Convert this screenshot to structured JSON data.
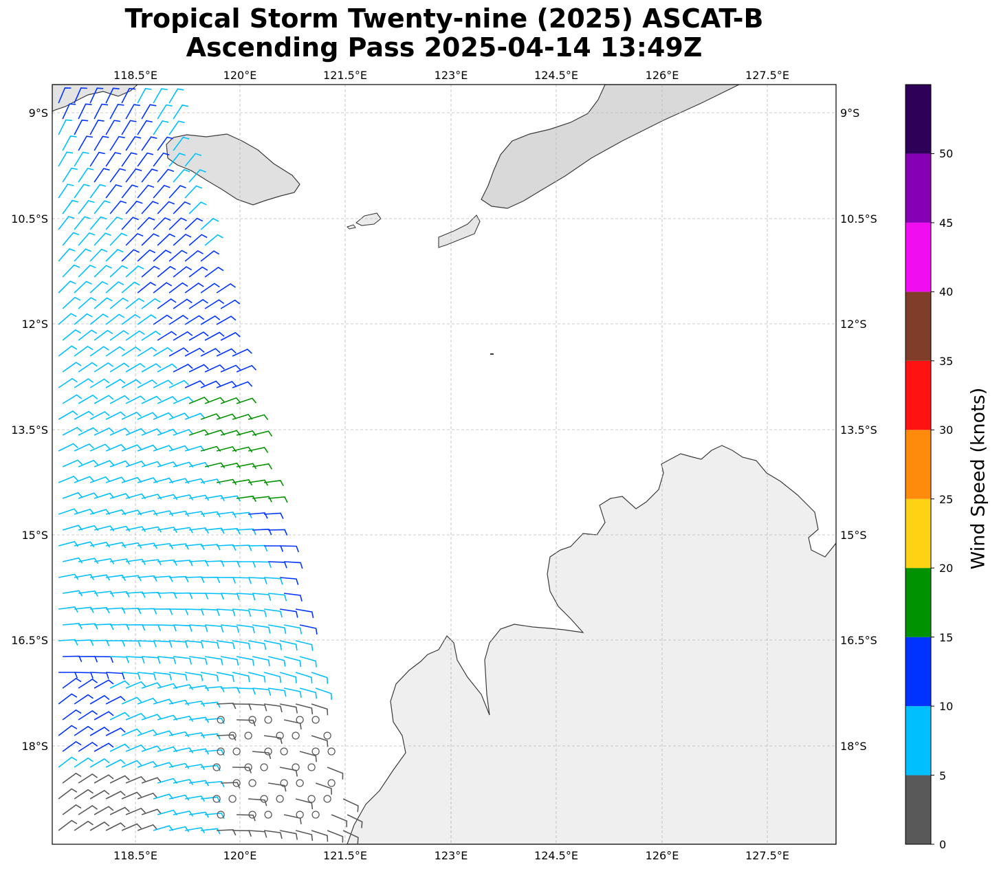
{
  "title": {
    "line1": "Tropical Storm Twenty-nine (2025) ASCAT-B",
    "line2": "Ascending Pass 2025-04-14 13:49Z"
  },
  "map": {
    "lon_ticks": [
      "118.5°E",
      "120°E",
      "121.5°E",
      "123°E",
      "124.5°E",
      "126°E",
      "127.5°E"
    ],
    "lat_ticks": [
      "9°S",
      "10.5°S",
      "12°S",
      "13.5°S",
      "15°S",
      "16.5°S",
      "18°S"
    ],
    "lon_range_deg_E": [
      117.3,
      128.45
    ],
    "lat_range_deg_S": [
      8.6,
      19.4
    ],
    "gridlines": "dashed"
  },
  "colorbar": {
    "label": "Wind Speed (knots)",
    "ticks": [
      "0",
      "5",
      "10",
      "15",
      "20",
      "25",
      "30",
      "35",
      "40",
      "45",
      "50"
    ],
    "range": [
      0,
      55
    ],
    "bins": [
      {
        "from": 0,
        "to": 5,
        "color": "#595959"
      },
      {
        "from": 5,
        "to": 10,
        "color": "#00bfff"
      },
      {
        "from": 10,
        "to": 15,
        "color": "#0033ff"
      },
      {
        "from": 15,
        "to": 20,
        "color": "#009200"
      },
      {
        "from": 20,
        "to": 25,
        "color": "#ffd313"
      },
      {
        "from": 25,
        "to": 30,
        "color": "#ff8b0c"
      },
      {
        "from": 30,
        "to": 35,
        "color": "#ff1212"
      },
      {
        "from": 35,
        "to": 40,
        "color": "#803e2a"
      },
      {
        "from": 40,
        "to": 45,
        "color": "#f00ef0"
      },
      {
        "from": 45,
        "to": 50,
        "color": "#8600b4"
      },
      {
        "from": 50,
        "to": 55,
        "color": "#2e0058"
      }
    ]
  },
  "colors": {
    "land": "#ededed",
    "coastline": "#3a3a3a",
    "grid": "#b8b8b8"
  }
}
